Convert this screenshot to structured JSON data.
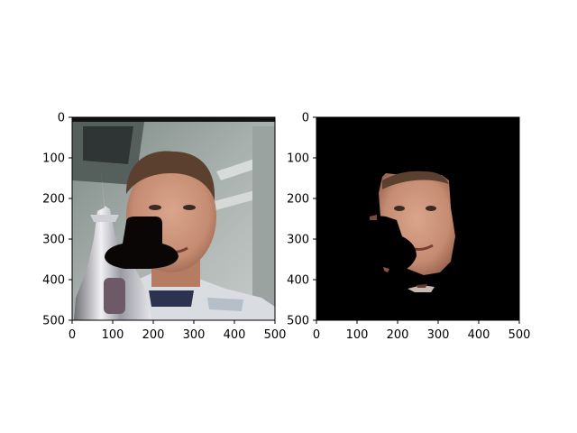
{
  "figure": {
    "background": "#ffffff"
  },
  "chart_data": [
    {
      "type": "image",
      "content": "photo-original",
      "xlim": [
        0,
        500
      ],
      "ylim": [
        500,
        0
      ],
      "x_ticks": [
        0,
        100,
        200,
        300,
        400,
        500
      ],
      "y_ticks": [
        0,
        100,
        200,
        300,
        400,
        500
      ],
      "x_tick_labels": [
        "0",
        "100",
        "200",
        "300",
        "400",
        "500"
      ],
      "y_tick_labels": [
        "0",
        "100",
        "200",
        "300",
        "400",
        "500"
      ],
      "title": "",
      "xlabel": "",
      "ylabel": ""
    },
    {
      "type": "image",
      "content": "photo-face-mask",
      "xlim": [
        0,
        500
      ],
      "ylim": [
        500,
        0
      ],
      "x_ticks": [
        0,
        100,
        200,
        300,
        400,
        500
      ],
      "y_ticks": [
        0,
        100,
        200,
        300,
        400,
        500
      ],
      "x_tick_labels": [
        "0",
        "100",
        "200",
        "300",
        "400",
        "500"
      ],
      "y_tick_labels": [
        "0",
        "100",
        "200",
        "300",
        "400",
        "500"
      ],
      "title": "",
      "xlabel": "",
      "ylabel": "",
      "background": "#000000"
    }
  ]
}
